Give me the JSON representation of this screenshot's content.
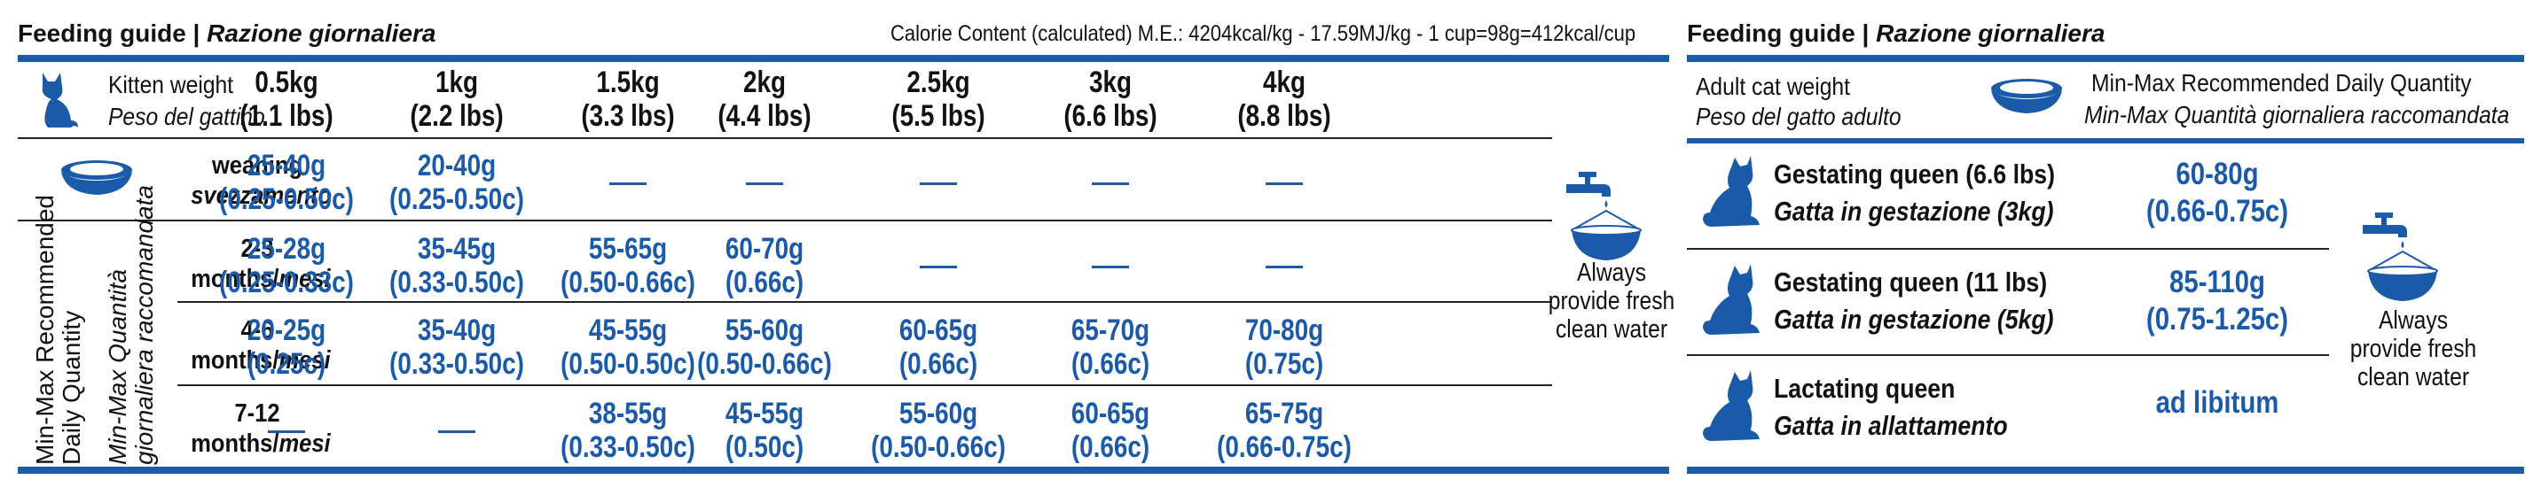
{
  "left": {
    "title_bold": "Feeding guide | ",
    "title_italic": "Razione giornaliera",
    "calorie": "Calorie Content (calculated) M.E.: 4204kcal/kg - 17.59MJ/kg - 1 cup=98g=412kcal/cup",
    "weight_label": "Kitten weight",
    "weight_label_it": "Peso del gattino",
    "weights": [
      {
        "kg": "0.5kg",
        "lbs": "(1.1 lbs)"
      },
      {
        "kg": "1kg",
        "lbs": "(2.2 lbs)"
      },
      {
        "kg": "1.5kg",
        "lbs": "(3.3 lbs)"
      },
      {
        "kg": "2kg",
        "lbs": "(4.4 lbs)"
      },
      {
        "kg": "2.5kg",
        "lbs": "(5.5 lbs)"
      },
      {
        "kg": "3kg",
        "lbs": "(6.6 lbs)"
      },
      {
        "kg": "4kg",
        "lbs": "(8.8 lbs)"
      }
    ],
    "side_label_1": "Min-Max Recommended",
    "side_label_2": "Daily Quantity",
    "side_label_it_1": "Min-Max Quantità",
    "side_label_it_2": "giornaliera raccomandata",
    "rows": [
      {
        "label_1": "weaning",
        "label_2": "svezzamento",
        "cells": [
          [
            "25-40g",
            "(0.25-0.50c)"
          ],
          [
            "20-40g",
            "(0.25-0.50c)"
          ],
          null,
          null,
          null,
          null,
          null
        ]
      },
      {
        "label_1": "2-3",
        "label_2a": "months/",
        "label_2b": "mesi",
        "cells": [
          [
            "25-28g",
            "(0.25-0.33c)"
          ],
          [
            "35-45g",
            "(0.33-0.50c)"
          ],
          [
            "55-65g",
            "(0.50-0.66c)"
          ],
          [
            "60-70g",
            "(0.66c)"
          ],
          null,
          null,
          null
        ]
      },
      {
        "label_1": "4-6",
        "label_2a": "months/",
        "label_2b": "mesi",
        "cells": [
          [
            "20-25g",
            "(0.25c)"
          ],
          [
            "35-40g",
            "(0.33-0.50c)"
          ],
          [
            "45-55g",
            "(0.50-0.50c)"
          ],
          [
            "55-60g",
            "(0.50-0.66c)"
          ],
          [
            "60-65g",
            "(0.66c)"
          ],
          [
            "65-70g",
            "(0.66c)"
          ],
          [
            "70-80g",
            "(0.75c)"
          ]
        ]
      },
      {
        "label_1": "7-12",
        "label_2a": "months/",
        "label_2b": "mesi",
        "cells": [
          null,
          null,
          [
            "38-55g",
            "(0.33-0.50c)"
          ],
          [
            "45-55g",
            "(0.50c)"
          ],
          [
            "55-60g",
            "(0.50-0.66c)"
          ],
          [
            "60-65g",
            "(0.66c)"
          ],
          [
            "65-75g",
            "(0.66-0.75c)"
          ]
        ]
      }
    ],
    "water": [
      "Always",
      "provide fresh",
      "clean water"
    ]
  },
  "right": {
    "title_bold": "Feeding guide | ",
    "title_italic": "Razione giornaliera",
    "weight_label": "Adult cat weight",
    "weight_label_it": "Peso del gatto adulto",
    "qty_label": "Min-Max Recommended Daily Quantity",
    "qty_label_it": "Min-Max Quantità giornaliera raccomandata",
    "rows": [
      {
        "label": "Gestating queen (6.6 lbs)",
        "label_it": "Gatta in gestazione (3kg)",
        "v1": "60-80g",
        "v2": "(0.66-0.75c)"
      },
      {
        "label": "Gestating queen (11 lbs)",
        "label_it": "Gatta in gestazione (5kg)",
        "v1": "85-110g",
        "v2": "(0.75-1.25c)"
      },
      {
        "label": "Lactating queen",
        "label_it": "Gatta in allattamento",
        "v1": "ad libitum",
        "v2": ""
      }
    ],
    "water": [
      "Always",
      "provide fresh",
      "clean water"
    ]
  },
  "colors": {
    "accent": "#1a5aa8",
    "text": "#111111"
  }
}
